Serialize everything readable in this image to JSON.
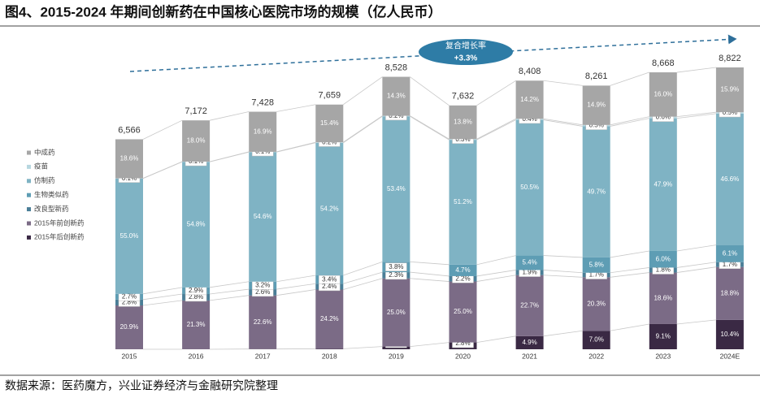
{
  "chart_data": {
    "type": "bar",
    "stacked": true,
    "title": "图4、2015-2024 年期间创新药在中国核心医院市场的规模（亿人民币）",
    "source": "数据来源：医药魔方，兴业证券经济与金融研究院整理",
    "annotation": {
      "text": "复合增长率",
      "value": 3.3,
      "value_label": "+3.3%"
    },
    "categories": [
      "2015",
      "2016",
      "2017",
      "2018",
      "2019",
      "2020",
      "2021",
      "2022",
      "2023",
      "2024E"
    ],
    "totals": {
      "values": [
        6566,
        7172,
        7428,
        7659,
        8528,
        7632,
        8408,
        8261,
        8668,
        8822
      ],
      "value_labels": [
        "6,566",
        "7,172",
        "7,428",
        "7,659",
        "8,528",
        "7,632",
        "8,408",
        "8,261",
        "8,668",
        "8,822"
      ]
    },
    "series": [
      {
        "name": "中成药",
        "color": "#a6a6a6",
        "values": [
          18.6,
          18.0,
          16.9,
          15.4,
          14.3,
          13.8,
          14.2,
          14.9,
          16.0,
          15.9
        ],
        "value_labels": [
          "18.6%",
          "18.0%",
          "16.9%",
          "15.4%",
          "14.3%",
          "13.8%",
          "14.2%",
          "14.9%",
          "16.0%",
          "15.9%"
        ]
      },
      {
        "name": "疫苗",
        "color": "#b7d7e0",
        "values": [
          0.1,
          0.1,
          0.1,
          0.2,
          0.2,
          0.3,
          0.4,
          0.5,
          0.6,
          0.5
        ],
        "value_labels": [
          "0.1%",
          "0.1%",
          "0.1%",
          "0.2%",
          "0.2%",
          "0.3%",
          "0.4%",
          "0.5%",
          "0.6%",
          "0.5%"
        ]
      },
      {
        "name": "仿制药",
        "color": "#7fb3c4",
        "values": [
          55.0,
          54.8,
          54.6,
          54.2,
          53.4,
          51.2,
          50.5,
          49.7,
          47.9,
          46.6
        ],
        "value_labels": [
          "55.0%",
          "54.8%",
          "54.6%",
          "54.2%",
          "53.4%",
          "51.2%",
          "50.5%",
          "49.7%",
          "47.9%",
          "46.6%"
        ]
      },
      {
        "name": "生物类似药",
        "color": "#5e9db4",
        "values": [
          2.7,
          2.9,
          3.2,
          3.4,
          3.8,
          4.7,
          5.4,
          5.8,
          6.0,
          6.1
        ],
        "value_labels": [
          "2.7%",
          "2.9%",
          "3.2%",
          "3.4%",
          "3.8%",
          "4.7%",
          "5.4%",
          "5.8%",
          "6.0%",
          "6.1%"
        ]
      },
      {
        "name": "改良型新药",
        "color": "#4a7e97",
        "values": [
          2.8,
          2.8,
          2.6,
          2.4,
          2.3,
          2.2,
          1.9,
          1.7,
          1.8,
          1.7
        ],
        "value_labels": [
          "2.8%",
          "2.8%",
          "2.6%",
          "2.4%",
          "2.3%",
          "2.2%",
          "1.9%",
          "1.7%",
          "1.8%",
          "1.7%"
        ]
      },
      {
        "name": "2015年前创新药",
        "color": "#7b6b86",
        "values": [
          20.9,
          21.3,
          22.6,
          24.2,
          25.0,
          25.0,
          22.7,
          20.3,
          18.6,
          18.8
        ],
        "value_labels": [
          "20.9%",
          "21.3%",
          "22.6%",
          "24.2%",
          "25.0%",
          "25.0%",
          "22.7%",
          "20.3%",
          "18.6%",
          "18.8%"
        ]
      },
      {
        "name": "2015年后创新药",
        "color": "#3a2944",
        "values": [
          0.0,
          0.0,
          0.1,
          0.2,
          1.0,
          2.8,
          4.9,
          7.0,
          9.1,
          10.4
        ],
        "value_labels": [
          "0.0%",
          "0.0%",
          "0.1%",
          "0.2%",
          "1.0%",
          "2.8%",
          "4.9%",
          "7.0%",
          "9.1%",
          "10.4%"
        ]
      }
    ]
  }
}
